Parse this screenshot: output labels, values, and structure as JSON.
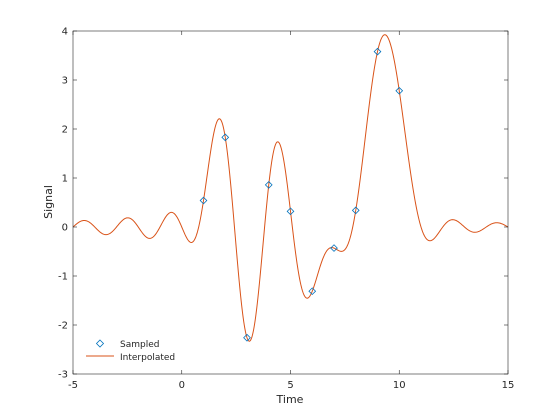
{
  "chart_data": {
    "type": "line",
    "xlabel": "Time",
    "ylabel": "Signal",
    "xlim": [
      -5,
      15
    ],
    "ylim": [
      -3,
      4
    ],
    "xticks": [
      -5,
      0,
      5,
      10,
      15
    ],
    "yticks": [
      -3,
      -2,
      -1,
      0,
      1,
      2,
      3,
      4
    ],
    "grid": false,
    "legend_position": "bottom-left",
    "series": [
      {
        "name": "Sampled",
        "style": "markers",
        "marker": "diamond",
        "color": "#0072BD",
        "x": [
          1,
          2,
          3,
          4,
          5,
          6,
          7,
          8,
          9,
          10
        ],
        "y": [
          0.54,
          1.83,
          -2.26,
          0.86,
          0.32,
          -1.31,
          -0.43,
          0.34,
          3.58,
          2.78
        ]
      },
      {
        "name": "Interpolated",
        "style": "line",
        "color": "#D95319",
        "interpolation": "sinc"
      }
    ]
  }
}
